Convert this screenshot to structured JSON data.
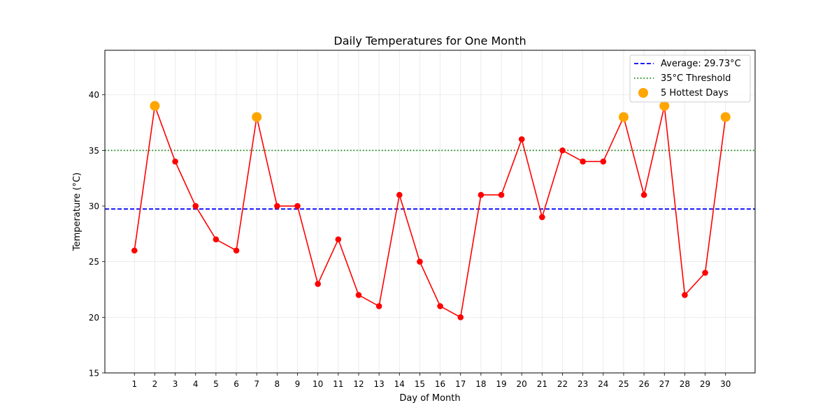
{
  "chart_data": {
    "type": "line",
    "title": "Daily Temperatures for One Month",
    "xlabel": "Day of Month",
    "ylabel": "Temperature (°C)",
    "x": [
      1,
      2,
      3,
      4,
      5,
      6,
      7,
      8,
      9,
      10,
      11,
      12,
      13,
      14,
      15,
      16,
      17,
      18,
      19,
      20,
      21,
      22,
      23,
      24,
      25,
      26,
      27,
      28,
      29,
      30
    ],
    "xlim": [
      -0.45,
      31.45
    ],
    "ylim": [
      15,
      44
    ],
    "yticks": [
      15,
      20,
      25,
      30,
      35,
      40
    ],
    "grid": true,
    "legend_position": "top-right",
    "series": [
      {
        "values": [
          26,
          39,
          34,
          30,
          27,
          26,
          38,
          30,
          30,
          23,
          27,
          22,
          21,
          31,
          25,
          21,
          20,
          31,
          31,
          36,
          29,
          35,
          34,
          34,
          38,
          31,
          39,
          22,
          24,
          38
        ],
        "color": "#ff0000"
      }
    ],
    "average": {
      "label": "Average: 29.73°C",
      "value": 29.73,
      "color": "#0000ff"
    },
    "threshold": {
      "label": "35°C Threshold",
      "value": 35,
      "color": "#008000"
    },
    "hottest": {
      "label": "5 Hottest Days",
      "color": "#ffa500",
      "days": [
        2,
        7,
        25,
        27,
        30
      ],
      "values": [
        39,
        38,
        38,
        39,
        38
      ]
    }
  }
}
